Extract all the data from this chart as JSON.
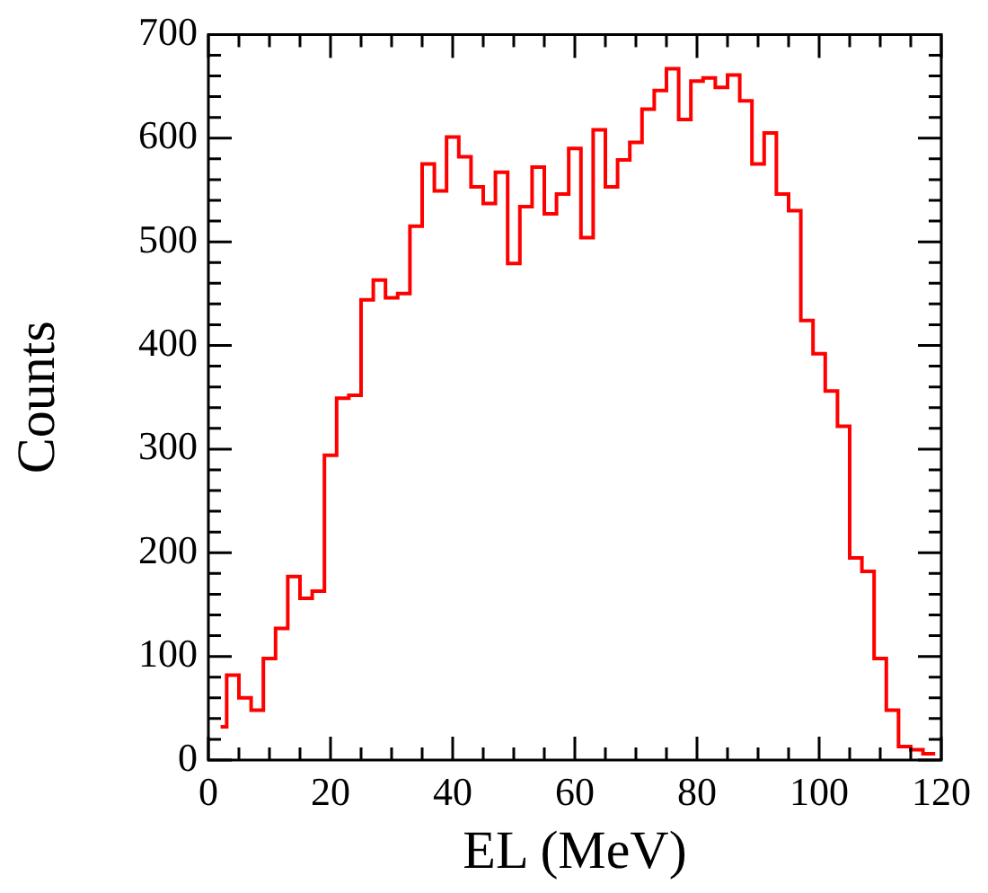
{
  "chart_data": {
    "type": "histogram",
    "xlabel": "EL (MeV)",
    "ylabel": "Counts",
    "color": "#ff0000",
    "bins": [
      2,
      3,
      5,
      7,
      9,
      11,
      13,
      15,
      17,
      19,
      21,
      23,
      25,
      27,
      29,
      31,
      33,
      35,
      37,
      39,
      41,
      43,
      45,
      47,
      49,
      51,
      53,
      55,
      57,
      59,
      61,
      63,
      65,
      67,
      69,
      71,
      73,
      75,
      77,
      79,
      81,
      83,
      85,
      87,
      89,
      91,
      93,
      95,
      97,
      99,
      101,
      103,
      105,
      107,
      109,
      111,
      113,
      115,
      117,
      119
    ],
    "values": [
      32,
      82,
      60,
      48,
      98,
      127,
      177,
      156,
      163,
      294,
      349,
      352,
      444,
      463,
      446,
      450,
      515,
      575,
      549,
      601,
      582,
      553,
      537,
      567,
      479,
      534,
      572,
      527,
      546,
      590,
      504,
      608,
      553,
      579,
      596,
      628,
      646,
      667,
      618,
      655,
      658,
      649,
      661,
      636,
      575,
      605,
      546,
      530,
      424,
      392,
      356,
      322,
      195,
      182,
      98,
      48,
      13,
      10,
      6
    ],
    "xlim": [
      0,
      120
    ],
    "xticks": [
      0,
      {
        "value": 5,
        "label": null
      },
      {
        "value": 10,
        "label": null
      },
      {
        "value": 15,
        "label": null
      },
      20,
      {
        "value": 25,
        "label": null
      },
      {
        "value": 30,
        "label": null
      },
      {
        "value": 35,
        "label": null
      },
      40,
      {
        "value": 45,
        "label": null
      },
      {
        "value": 50,
        "label": null
      },
      {
        "value": 55,
        "label": null
      },
      60,
      {
        "value": 65,
        "label": null
      },
      {
        "value": 70,
        "label": null
      },
      {
        "value": 75,
        "label": null
      },
      80,
      {
        "value": 85,
        "label": null
      },
      {
        "value": 90,
        "label": null
      },
      {
        "value": 95,
        "label": null
      },
      100,
      {
        "value": 105,
        "label": null
      },
      {
        "value": 110,
        "label": null
      },
      {
        "value": 115,
        "label": null
      },
      120
    ],
    "ylim": [
      0,
      700
    ],
    "yticks": [
      0,
      {
        "value": 20,
        "label": null
      },
      {
        "value": 40,
        "label": null
      },
      {
        "value": 60,
        "label": null
      },
      {
        "value": 80,
        "label": null
      },
      100,
      {
        "value": 120,
        "label": null
      },
      {
        "value": 140,
        "label": null
      },
      {
        "value": 160,
        "label": null
      },
      {
        "value": 180,
        "label": null
      },
      200,
      {
        "value": 220,
        "label": null
      },
      {
        "value": 240,
        "label": null
      },
      {
        "value": 260,
        "label": null
      },
      {
        "value": 280,
        "label": null
      },
      300,
      {
        "value": 320,
        "label": null
      },
      {
        "value": 340,
        "label": null
      },
      {
        "value": 360,
        "label": null
      },
      {
        "value": 380,
        "label": null
      },
      400,
      {
        "value": 420,
        "label": null
      },
      {
        "value": 440,
        "label": null
      },
      {
        "value": 460,
        "label": null
      },
      {
        "value": 480,
        "label": null
      },
      500,
      {
        "value": 520,
        "label": null
      },
      {
        "value": 540,
        "label": null
      },
      {
        "value": 560,
        "label": null
      },
      {
        "value": 580,
        "label": null
      },
      600,
      {
        "value": 620,
        "label": null
      },
      {
        "value": 640,
        "label": null
      },
      {
        "value": 660,
        "label": null
      },
      {
        "value": 680,
        "label": null
      },
      700
    ],
    "grid": false,
    "legend": false
  }
}
